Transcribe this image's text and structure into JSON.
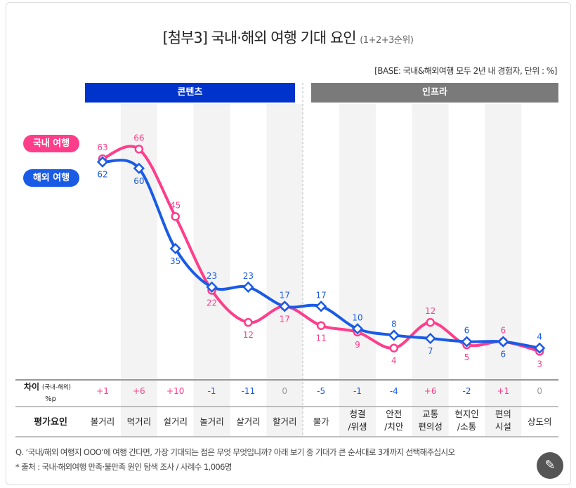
{
  "title": "[첨부3] 국내·해외 여행 기대 요인",
  "title_sub": "(1+2+3순위)",
  "base_note": "[BASE: 국내&해외여행 모두 2년 내 경험자, 단위 : %]",
  "groups": [
    {
      "label": "콘텐츠",
      "color": "#0033cc"
    },
    {
      "label": "인프라",
      "color": "#7a7a7a"
    }
  ],
  "chart_data": {
    "type": "line",
    "categories": [
      "볼거리",
      "먹거리",
      "쉴거리",
      "놀거리",
      "살거리",
      "할거리",
      "물가",
      "청결\n/위생",
      "안전\n/치안",
      "교통\n편의성",
      "현지인\n/소통",
      "편의\n시설",
      "상도의"
    ],
    "series": [
      {
        "name": "국내 여행",
        "color": "#ff3d8b",
        "values": [
          63,
          66,
          45,
          22,
          12,
          17,
          11,
          9,
          4,
          12,
          5,
          6,
          3
        ]
      },
      {
        "name": "해외 여행",
        "color": "#1a5be6",
        "values": [
          62,
          60,
          35,
          23,
          23,
          17,
          17,
          10,
          8,
          7,
          6,
          6,
          4
        ]
      }
    ],
    "diff_label": "차이",
    "diff_label_sub": "(국내-해외)",
    "diff_unit": "%p",
    "diff": [
      "+1",
      "+6",
      "+10",
      "-1",
      "-11",
      "0",
      "-5",
      "-1",
      "-4",
      "+6",
      "-2",
      "+1",
      "0"
    ],
    "row_label": "평가요인",
    "colors": {
      "positive": "#ff3d8b",
      "negative": "#1a5be6",
      "zero": "#999999"
    }
  },
  "notes": [
    "Q. ‘국내/해외 여행지 OOO’에 여행 간다면, 가장 기대되는 점은 무엇 무엇입니까? 아래 보기 중 기대가 큰 순서대로 3개까지 선택해주십시오",
    "* 출처 : 국내·해외여행 만족·불만족 원인 탐색 조사 / 사례수 1,006명"
  ],
  "magic_icon": "magic-wand-icon"
}
